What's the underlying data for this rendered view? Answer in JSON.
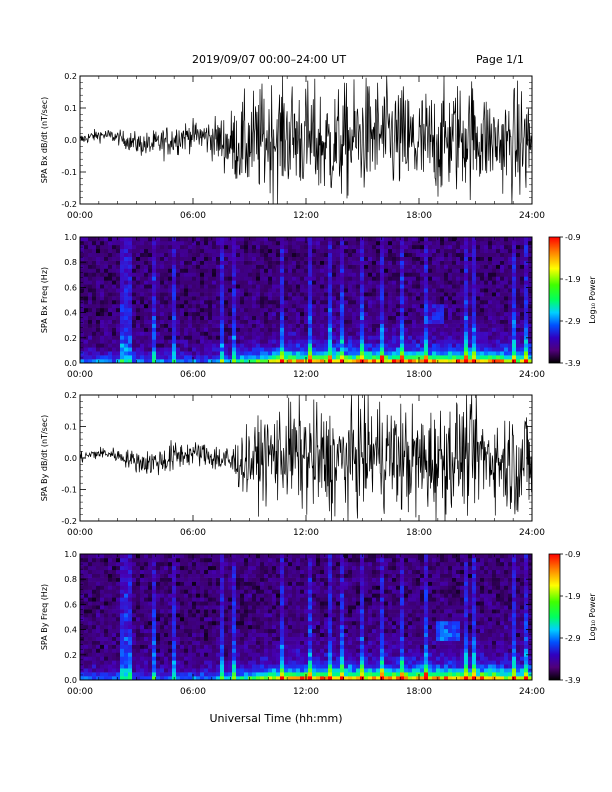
{
  "header": {
    "date_range": "2019/09/07   00:00–24:00 UT",
    "page": "Page 1/1"
  },
  "x_axis_label": "Universal Time (hh:mm)",
  "colorbar": {
    "label": "Log₁₀ Power",
    "ticks": [
      "-0.9",
      "-1.9",
      "-2.9",
      "-3.9"
    ],
    "colors": [
      "#ff0000",
      "#ff8000",
      "#ffff00",
      "#80ff00",
      "#00ff00",
      "#00ff80",
      "#00c8ff",
      "#0050ff",
      "#3000c0",
      "#50007a",
      "#000000"
    ]
  },
  "chart_data": [
    {
      "type": "line",
      "id": "bx-waveform",
      "ylabel": "SPA Bx dB/dt (nT/sec)",
      "x_ticks": [
        "00:00",
        "06:00",
        "12:00",
        "18:00",
        "24:00"
      ],
      "y_ticks": [
        "0.2",
        "0.1",
        "0.0",
        "-0.1",
        "-0.2"
      ],
      "xlim": [
        0,
        24
      ],
      "ylim": [
        -0.2,
        0.2
      ],
      "envelope_hours": [
        0,
        2,
        3,
        4,
        5,
        6,
        7,
        8,
        9,
        10,
        11,
        12,
        13,
        14,
        15,
        16,
        17,
        18,
        19,
        20,
        21,
        22,
        23,
        24
      ],
      "envelope_amplitude": [
        0.02,
        0.025,
        0.04,
        0.05,
        0.06,
        0.05,
        0.07,
        0.12,
        0.18,
        0.2,
        0.2,
        0.2,
        0.2,
        0.2,
        0.2,
        0.2,
        0.2,
        0.2,
        0.2,
        0.2,
        0.2,
        0.15,
        0.2,
        0.2
      ]
    },
    {
      "type": "heatmap",
      "id": "bx-spectrogram",
      "ylabel": "SPA Bx Freq (Hz)",
      "x_ticks": [
        "00:00",
        "06:00",
        "12:00",
        "18:00",
        "24:00"
      ],
      "y_ticks": [
        "1.0",
        "0.8",
        "0.6",
        "0.4",
        "0.2",
        "0.0"
      ],
      "xlim": [
        0,
        24
      ],
      "ylim": [
        0,
        1.0
      ],
      "clim": [
        -3.9,
        -0.9
      ]
    },
    {
      "type": "line",
      "id": "by-waveform",
      "ylabel": "SPA By dB/dt (nT/sec)",
      "x_ticks": [
        "00:00",
        "06:00",
        "12:00",
        "18:00",
        "24:00"
      ],
      "y_ticks": [
        "0.2",
        "0.1",
        "0.0",
        "-0.1",
        "-0.2"
      ],
      "xlim": [
        0,
        24
      ],
      "ylim": [
        -0.2,
        0.2
      ],
      "envelope_hours": [
        0,
        2,
        3,
        4,
        5,
        6,
        7,
        8,
        9,
        10,
        11,
        12,
        13,
        14,
        15,
        16,
        17,
        18,
        19,
        20,
        21,
        22,
        23,
        24
      ],
      "envelope_amplitude": [
        0.02,
        0.025,
        0.04,
        0.05,
        0.06,
        0.04,
        0.05,
        0.07,
        0.12,
        0.16,
        0.18,
        0.2,
        0.2,
        0.2,
        0.2,
        0.2,
        0.2,
        0.2,
        0.2,
        0.2,
        0.2,
        0.15,
        0.2,
        0.2
      ]
    },
    {
      "type": "heatmap",
      "id": "by-spectrogram",
      "ylabel": "SPA By Freq (Hz)",
      "x_ticks": [
        "00:00",
        "06:00",
        "12:00",
        "18:00",
        "24:00"
      ],
      "y_ticks": [
        "1.0",
        "0.8",
        "0.6",
        "0.4",
        "0.2",
        "0.0"
      ],
      "xlim": [
        0,
        24
      ],
      "ylim": [
        0,
        1.0
      ],
      "clim": [
        -3.9,
        -0.9
      ]
    }
  ]
}
